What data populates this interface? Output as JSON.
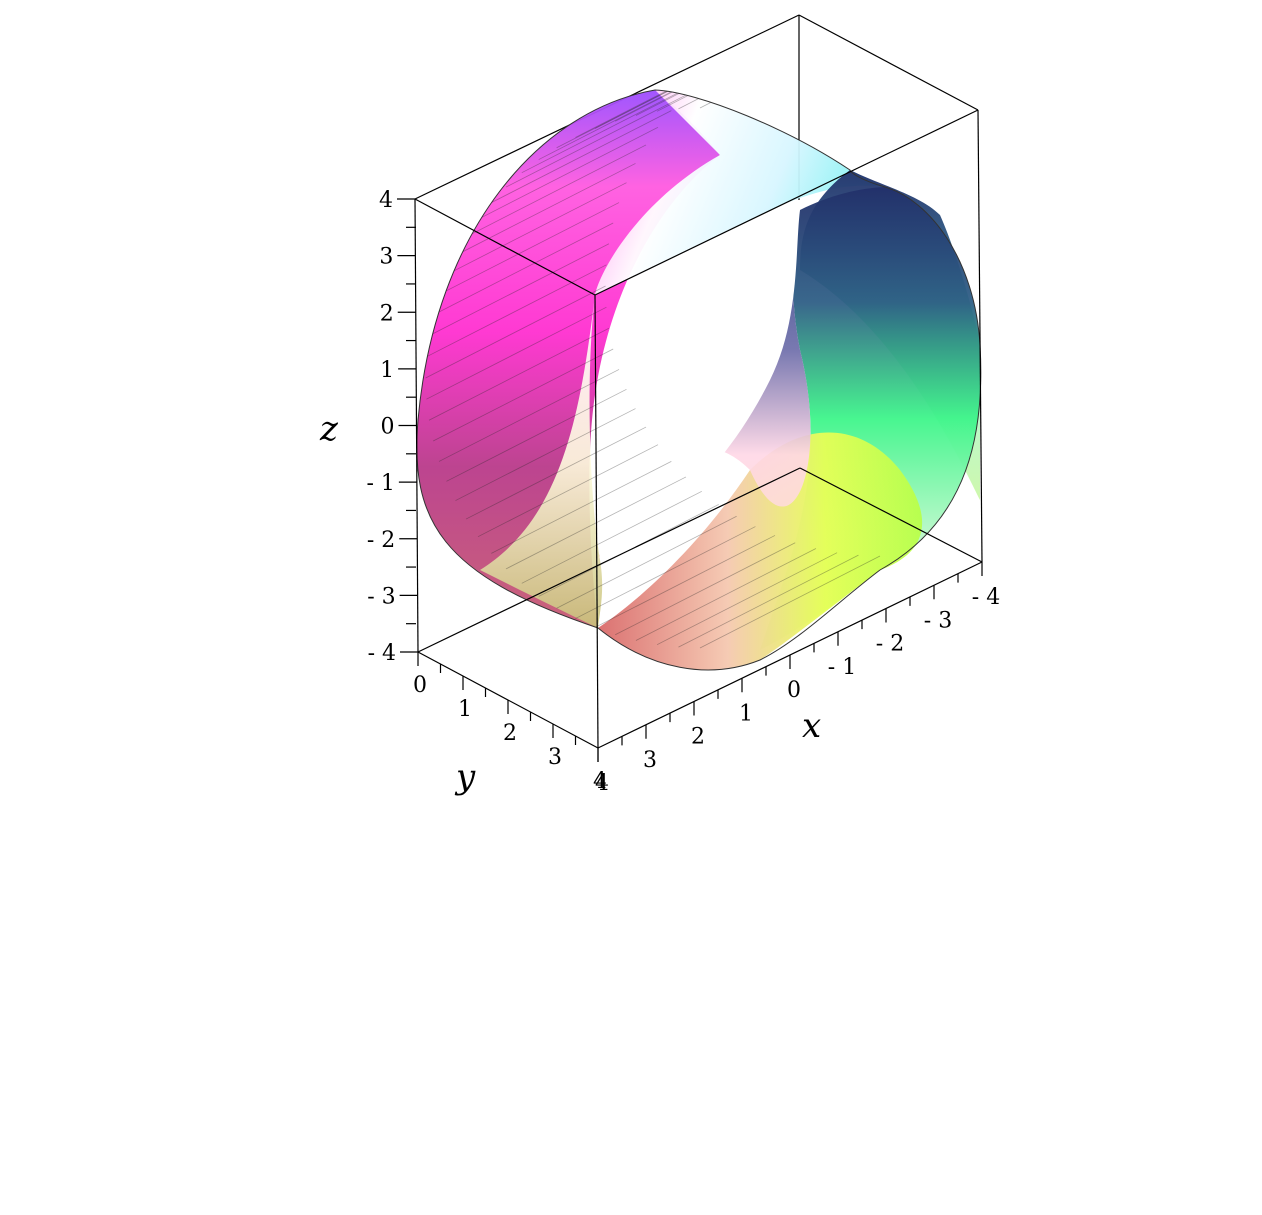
{
  "chart_data": {
    "type": "surface3d",
    "title": "",
    "surface": "half-annulus band (half cylinder), radius 4 about the y-axis, y from 0 to 4",
    "parametrization": {
      "x": "4*cos(t)",
      "z": "4*sin(t)",
      "t_range": [
        0,
        3.14159
      ],
      "y_range": [
        0,
        4
      ]
    },
    "axes": {
      "x": {
        "label": "x",
        "range": [
          -4,
          0
        ],
        "ticks": [
          "0",
          "- 1",
          "- 2",
          "- 3",
          "- 4"
        ],
        "tick_values": [
          0,
          -1,
          -2,
          -3,
          -4
        ]
      },
      "y": {
        "label": "y",
        "range": [
          0,
          4
        ],
        "ticks": [
          "0",
          "1",
          "2",
          "3",
          "4"
        ],
        "tick_values": [
          0,
          1,
          2,
          3,
          4
        ]
      },
      "z": {
        "label": "z",
        "range": [
          -4,
          4
        ],
        "ticks": [
          "4",
          "3",
          "2",
          "1",
          "0",
          "- 1",
          "- 2",
          "- 3",
          "- 4"
        ],
        "tick_values": [
          4,
          3,
          2,
          1,
          0,
          -1,
          -2,
          -3,
          -4
        ]
      },
      "x_far": {
        "ticks": [
          "4",
          "3",
          "2",
          "1"
        ],
        "tick_values": [
          4,
          3,
          2,
          1
        ]
      }
    },
    "colors": {
      "magenta": "#ff2fd0",
      "violet": "#8c4dff",
      "cyan": "#7ff2f2",
      "navy": "#283a7a",
      "green": "#3ef58a",
      "yellow": "#e6ff55",
      "salmon": "#d96a6a",
      "box": "#000000"
    },
    "box": true,
    "mesh": true
  }
}
